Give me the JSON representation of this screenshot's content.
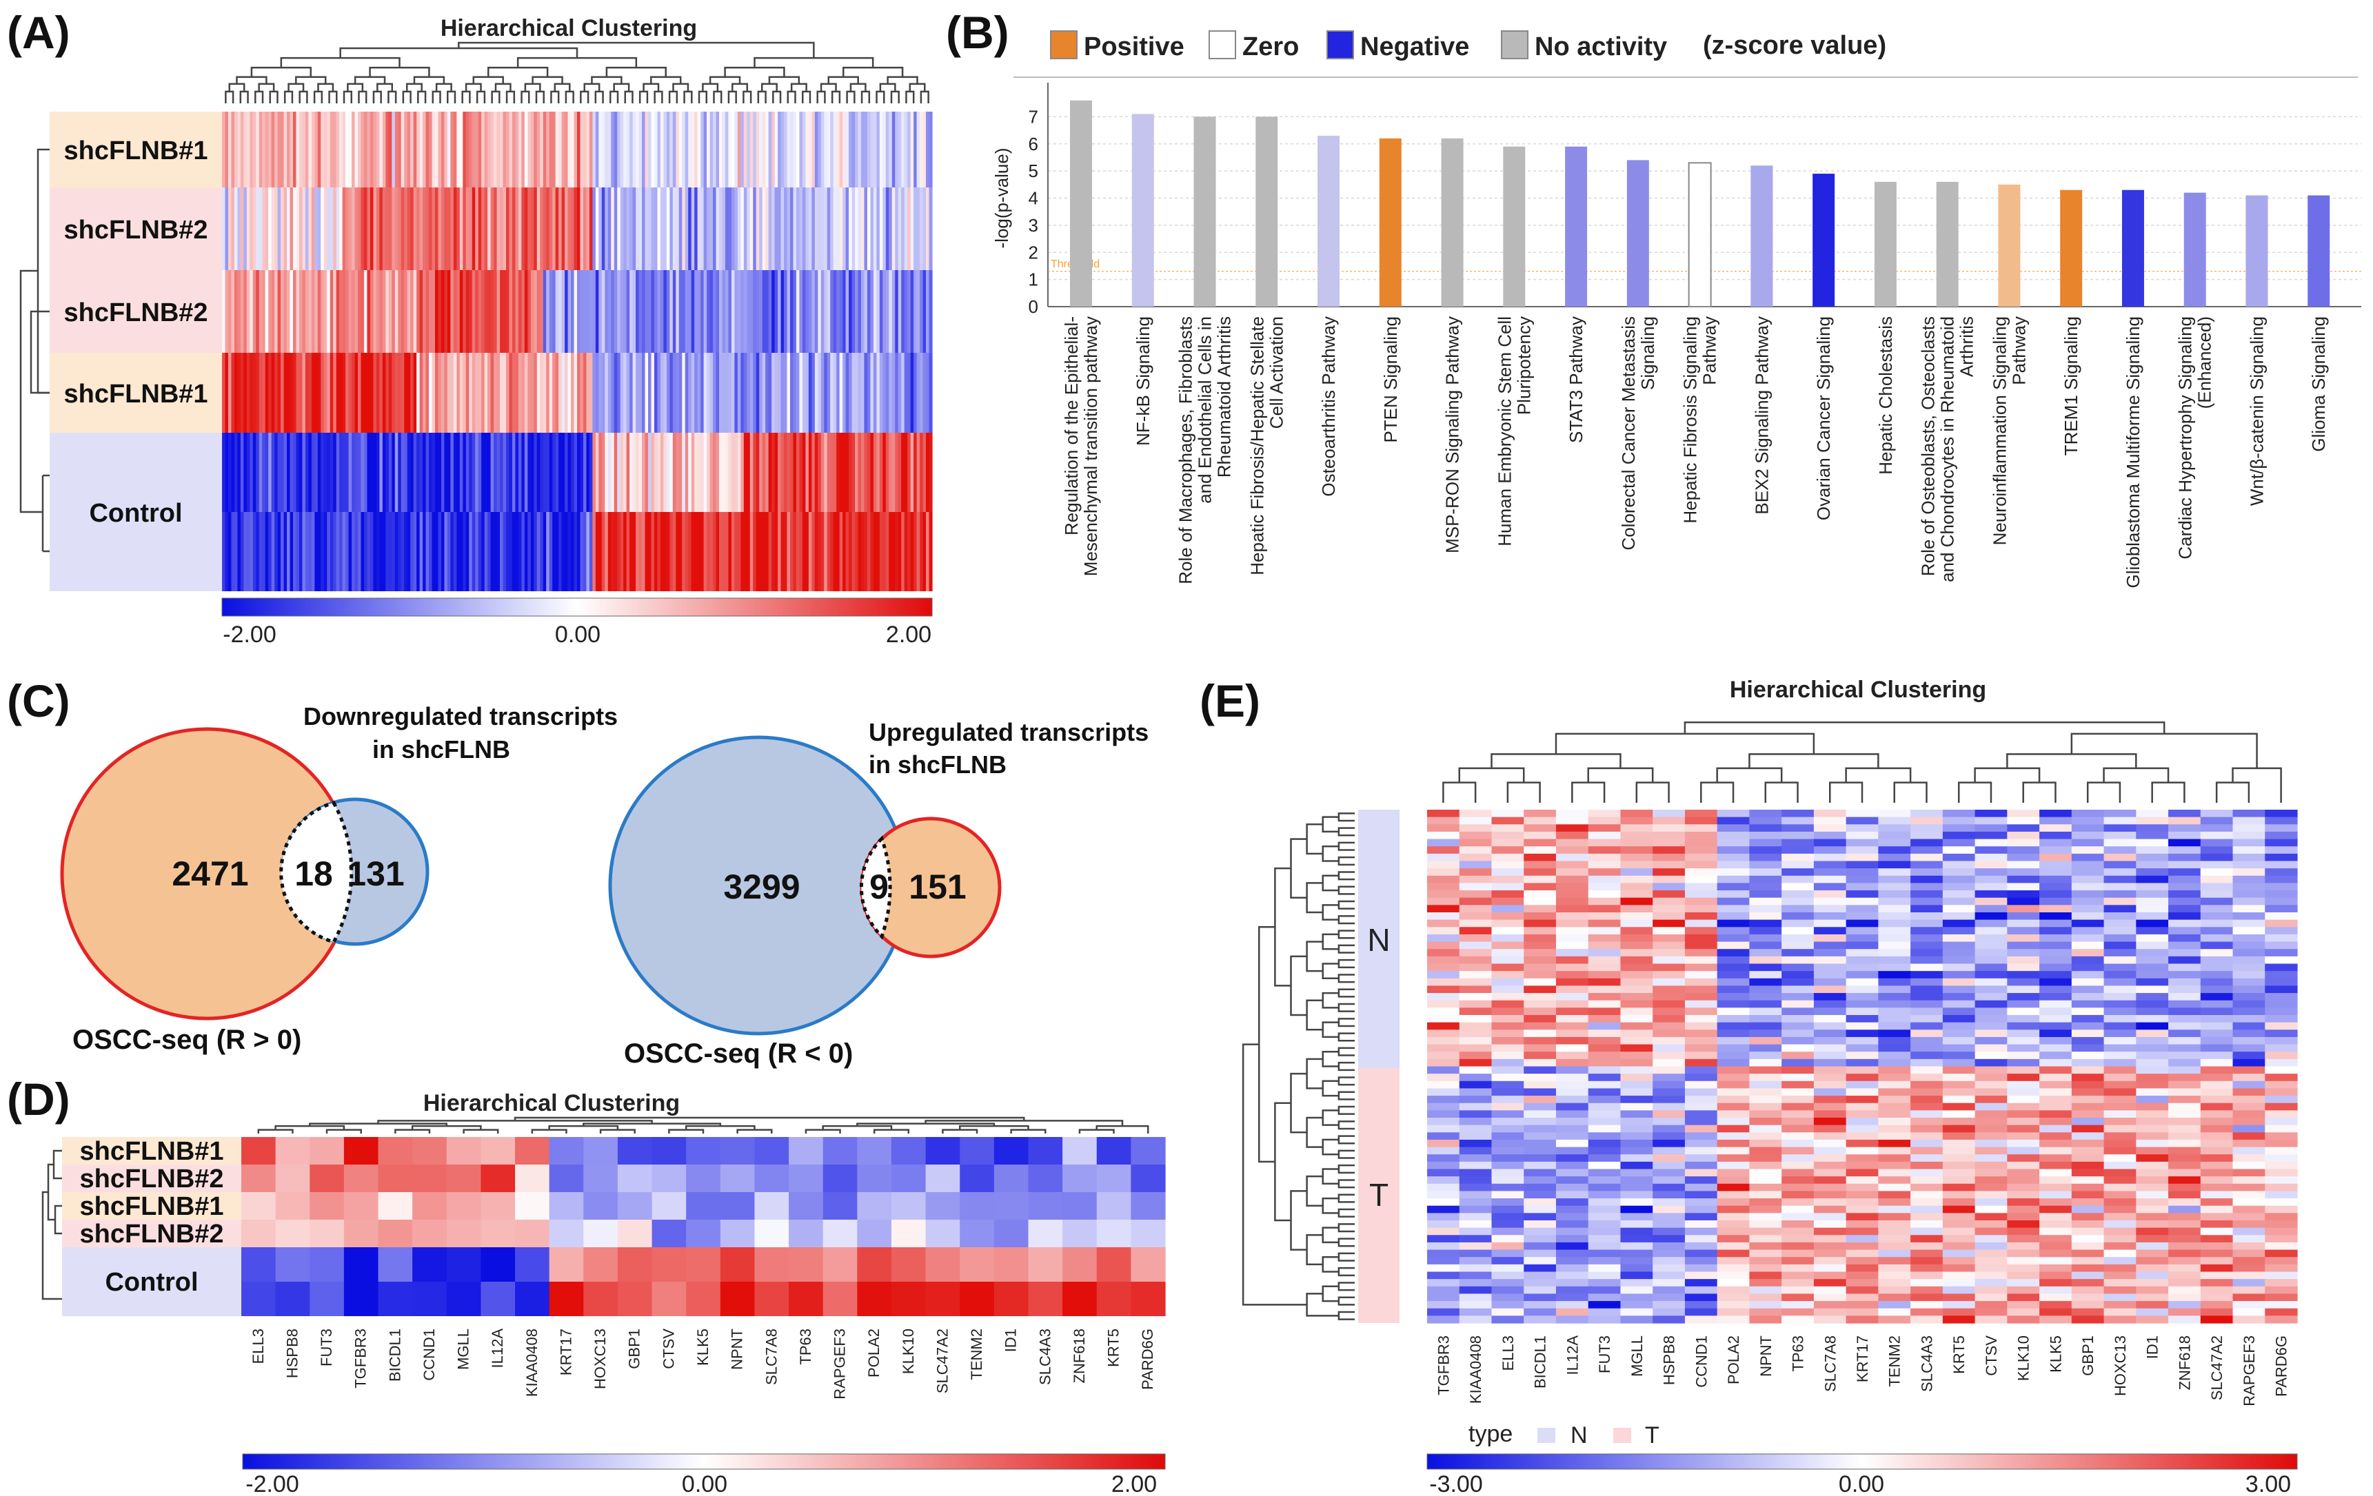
{
  "panels": {
    "a": {
      "label": "(A)",
      "title": "Hierarchical Clustering",
      "rows": [
        "shcFLNB#1",
        "shcFLNB#2",
        "shcFLNB#2",
        "shcFLNB#1",
        "Control"
      ],
      "row_colors": [
        "#fde8d2",
        "#fbdfe0",
        "#fbdfe0",
        "#fde8d2",
        "#dfe0f8"
      ],
      "scale": [
        "-2.00",
        "0.00",
        "2.00"
      ]
    },
    "b": {
      "label": "(B)",
      "legend": [
        {
          "label": "Positive",
          "color": "#e8842c"
        },
        {
          "label": "Zero",
          "color": "#ffffff"
        },
        {
          "label": "Negative",
          "color": "#2224e0"
        },
        {
          "label": "No activity",
          "color": "#b9b9b9"
        }
      ],
      "legend_note": "(z-score value)",
      "threshold_label": "Threshold",
      "chart_data": {
        "type": "bar",
        "ylabel": "-log(p-value)",
        "ylim": [
          0,
          8
        ],
        "yticks": [
          0,
          1,
          2,
          3,
          4,
          5,
          6,
          7
        ],
        "threshold": 1.3,
        "categories": [
          "Regulation of the Epithelial-Mesenchymal transition pathway",
          "NF-kB Signaling",
          "Role of Macrophages, Fibroblasts and Endothelial Cells in Rheumatoid Arthritis",
          "Hepatic Fibrosis/Hepatic Stellate Cell Activation",
          "Osteoarthritis Pathway",
          "PTEN Signaling",
          "MSP-RON Signaling Pathway",
          "Human Embryonic Stem Cell Pluripotency",
          "STAT3 Pathway",
          "Colorectal Cancer Metastasis Signaling",
          "Hepatic Fibrosis Signaling Pathway",
          "BEX2 Signaling Pathway",
          "Ovarian Cancer Signaling",
          "Hepatic Cholestasis",
          "Role of Osteoblasts, Osteoclasts and Chondrocytes in Rheumatoid Arthritis",
          "Neuroinflammation Signaling Pathway",
          "TREM1 Signaling",
          "Glioblastoma Multiforme Signaling",
          "Cardiac Hypertrophy Signaling (Enhanced)",
          "Wnt/β-catenin Signaling",
          "Glioma Signaling"
        ],
        "label_lines": [
          [
            "Regulation of the Epithelial-",
            "Mesenchymal transition pathway"
          ],
          [
            "NF-kB Signaling"
          ],
          [
            "Role of Macrophages, Fibroblasts",
            "and Endothelial Cells in",
            "Rheumatoid Arthritis"
          ],
          [
            "Hepatic Fibrosis/Hepatic Stellate",
            "Cell Activation"
          ],
          [
            "Osteoarthritis Pathway"
          ],
          [
            "PTEN Signaling"
          ],
          [
            "MSP-RON Signaling Pathway"
          ],
          [
            "Human Embryonic Stem Cell",
            "Pluripotency"
          ],
          [
            "STAT3 Pathway"
          ],
          [
            "Colorectal Cancer Metastasis",
            "Signaling"
          ],
          [
            "Hepatic Fibrosis Signaling",
            "Pathway"
          ],
          [
            "BEX2 Signaling Pathway"
          ],
          [
            "Ovarian Cancer Signaling"
          ],
          [
            "Hepatic Cholestasis"
          ],
          [
            "Role of Osteoblasts, Osteoclasts",
            "and Chondrocytes in Rheumatoid",
            "Arthritis"
          ],
          [
            "Neuroinflammation Signaling",
            "Pathway"
          ],
          [
            "TREM1 Signaling"
          ],
          [
            "Glioblastoma Multiforme Signaling"
          ],
          [
            "Cardiac Hypertrophy Signaling",
            "(Enhanced)"
          ],
          [
            "Wnt/β-catenin Signaling"
          ],
          [
            "Glioma Signaling"
          ]
        ],
        "values": [
          7.6,
          7.1,
          7.0,
          7.0,
          6.3,
          6.2,
          6.2,
          5.9,
          5.9,
          5.4,
          5.3,
          5.2,
          4.9,
          4.6,
          4.6,
          4.5,
          4.3,
          4.3,
          4.2,
          4.1,
          4.1
        ],
        "colors": [
          "#b9b9b9",
          "#c4c4ee",
          "#b9b9b9",
          "#b9b9b9",
          "#c4c4ee",
          "#e8842c",
          "#b9b9b9",
          "#b9b9b9",
          "#8c8ce8",
          "#8c8ce8",
          "#ffffff",
          "#a8a8ec",
          "#2224e0",
          "#b9b9b9",
          "#b9b9b9",
          "#f2bb8c",
          "#e8842c",
          "#3436e0",
          "#8c8ce8",
          "#a8a8ec",
          "#6e6ee8"
        ]
      }
    },
    "c": {
      "label": "(C)",
      "venn_down": {
        "title_lines": [
          "Downregulated transcripts",
          "in shcFLNB"
        ],
        "left": "2471",
        "overlap": "18",
        "right": "131",
        "bottom": "OSCC-seq (R > 0)"
      },
      "venn_up": {
        "title_lines": [
          "Upregulated transcripts",
          "in shcFLNB"
        ],
        "left": "3299",
        "overlap": "9",
        "right": "151",
        "bottom": "OSCC-seq (R < 0)"
      }
    },
    "d": {
      "label": "(D)",
      "title": "Hierarchical Clustering",
      "rows": [
        "shcFLNB#1",
        "shcFLNB#2",
        "shcFLNB#1",
        "shcFLNB#2",
        "Control"
      ],
      "row_colors": [
        "#fde8d2",
        "#fbdfe0",
        "#fde8d2",
        "#fbdfe0",
        "#dfe0f8"
      ],
      "genes": [
        "ELL3",
        "HSPB8",
        "FUT3",
        "TGFBR3",
        "BICDL1",
        "CCND1",
        "MGLL",
        "IL12A",
        "KIAA0408",
        "KRT17",
        "HOXC13",
        "GBP1",
        "CTSV",
        "KLK5",
        "NPNT",
        "SLC7A8",
        "TP63",
        "RAPGEF3",
        "POLA2",
        "KLK10",
        "SLC47A2",
        "TENM2",
        "ID1",
        "SLC4A3",
        "ZNF618",
        "KRT5",
        "PARD6G"
      ],
      "scale": [
        "-2.00",
        "0.00",
        "2.00"
      ]
    },
    "e": {
      "label": "(E)",
      "title": "Hierarchical Clustering",
      "groups": [
        "N",
        "T"
      ],
      "type_label": "type",
      "genes": [
        "TGFBR3",
        "KIAA0408",
        "ELL3",
        "BICDL1",
        "IL12A",
        "FUT3",
        "MGLL",
        "HSPB8",
        "CCND1",
        "POLA2",
        "NPNT",
        "TP63",
        "SLC7A8",
        "KRT17",
        "TENM2",
        "SLC4A3",
        "KRT5",
        "CTSV",
        "KLK10",
        "KLK5",
        "GBP1",
        "HOXC13",
        "ID1",
        "ZNF618",
        "SLC47A2",
        "RAPGEF3",
        "PARD6G"
      ],
      "scale": [
        "-3.00",
        "0.00",
        "3.00"
      ]
    }
  }
}
